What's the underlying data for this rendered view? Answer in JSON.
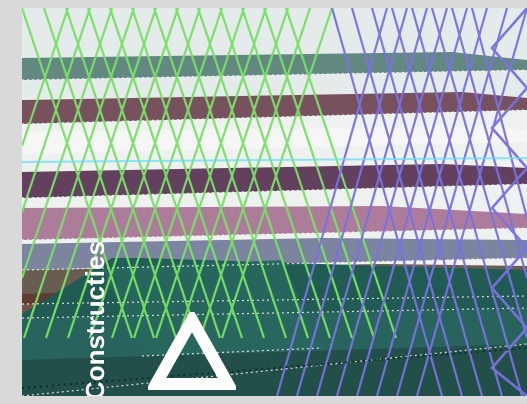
{
  "image": {
    "label": "Constructies",
    "logo_icon": "triangle-outline-icon",
    "colors": {
      "background": "#d9d9d9",
      "label": "#ffffff",
      "green_lines": "#7de86a",
      "blue_lines": "#7d76e6",
      "floor_teal": "#1f5f57",
      "slab_brown": "#5f3b2d",
      "slab_purple": "#512454"
    }
  }
}
